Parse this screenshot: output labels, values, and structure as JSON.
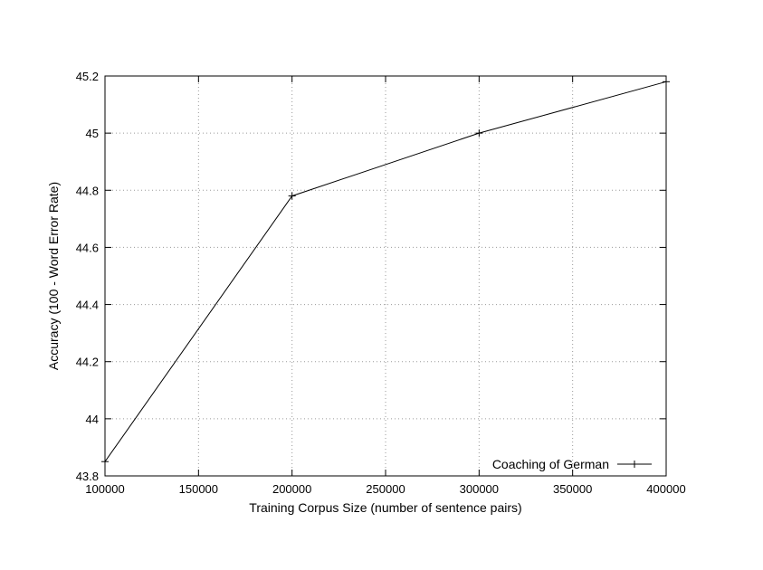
{
  "chart_data": {
    "type": "line",
    "title": "",
    "xlabel": "Training Corpus Size (number of sentence pairs)",
    "ylabel": "Accuracy (100 - Word Error Rate)",
    "xlim": [
      100000,
      400000
    ],
    "ylim": [
      43.8,
      45.2
    ],
    "xticks": [
      100000,
      150000,
      200000,
      250000,
      300000,
      350000,
      400000
    ],
    "xtick_labels": [
      "100000",
      "150000",
      "200000",
      "250000",
      "300000",
      "350000",
      "400000"
    ],
    "yticks": [
      43.8,
      44.0,
      44.2,
      44.4,
      44.6,
      44.8,
      45.0,
      45.2
    ],
    "ytick_labels": [
      "43.8",
      "44",
      "44.2",
      "44.4",
      "44.6",
      "44.8",
      "45",
      "45.2"
    ],
    "grid": true,
    "legend_position": "bottom-right",
    "series": [
      {
        "name": "Coaching of German",
        "marker": "plus",
        "color": "#000000",
        "x": [
          100000,
          200000,
          300000,
          400000
        ],
        "y": [
          43.85,
          44.78,
          45.0,
          45.18
        ]
      }
    ]
  }
}
